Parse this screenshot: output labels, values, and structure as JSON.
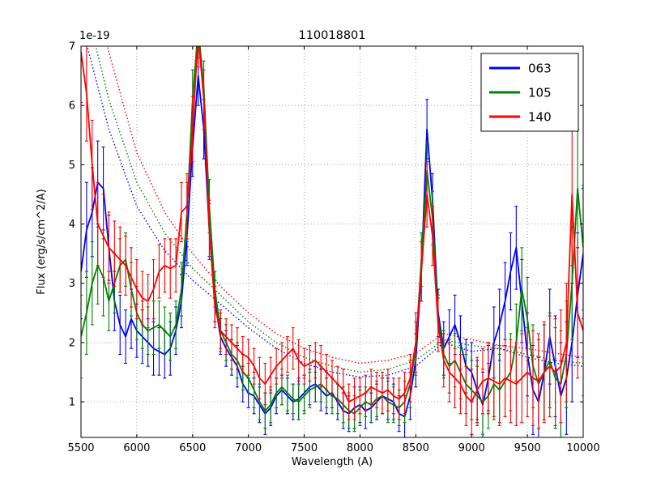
{
  "chart_data": {
    "type": "line",
    "title": "110018801",
    "xlabel": "Wavelength (A)",
    "ylabel": "Flux (erg/s/cm^2/A)",
    "y_offset_text": "1e-19",
    "xlim": [
      5500,
      10000
    ],
    "ylim": [
      0.4,
      7.0
    ],
    "xticks": [
      5500,
      6000,
      6500,
      7000,
      7500,
      8000,
      8500,
      9000,
      9500,
      10000
    ],
    "yticks": [
      1,
      2,
      3,
      4,
      5,
      6,
      7
    ],
    "grid": true,
    "grid_style": "dotted",
    "grid_color": "#999999",
    "axes_color": "#000000",
    "background": "#ffffff",
    "legend": {
      "position": "upper right",
      "entries": [
        {
          "label": "063",
          "color": "#0000ff"
        },
        {
          "label": "105",
          "color": "#008000"
        },
        {
          "label": "140",
          "color": "#ff0000"
        }
      ]
    },
    "x": {
      "start": 5500,
      "step": 50,
      "count": 91
    },
    "dotted_x": [
      5500,
      5750,
      6000,
      6250,
      6500,
      6750,
      7000,
      7250,
      7500,
      7750,
      8000,
      8250,
      8500,
      8750,
      9000,
      9250,
      9500,
      9750,
      10000
    ],
    "series": [
      {
        "name": "063-model",
        "color": "#0000ff",
        "style": "dotted",
        "use_dotted_x": true,
        "values": [
          7.4,
          5.6,
          4.3,
          3.55,
          3.05,
          2.65,
          2.25,
          1.9,
          1.65,
          1.5,
          1.42,
          1.45,
          1.6,
          2.0,
          1.85,
          1.9,
          1.75,
          1.65,
          1.6
        ]
      },
      {
        "name": "105-model",
        "color": "#008000",
        "style": "dotted",
        "use_dotted_x": true,
        "values": [
          8.0,
          6.1,
          4.7,
          3.85,
          3.25,
          2.8,
          2.35,
          2.0,
          1.75,
          1.6,
          1.5,
          1.55,
          1.7,
          2.05,
          1.95,
          1.9,
          1.8,
          1.7,
          1.65
        ]
      },
      {
        "name": "140-model",
        "color": "#ff0000",
        "style": "dotted",
        "use_dotted_x": true,
        "values": [
          9.0,
          6.9,
          5.2,
          4.2,
          3.5,
          2.95,
          2.5,
          2.15,
          1.9,
          1.75,
          1.65,
          1.7,
          1.82,
          2.15,
          2.05,
          1.95,
          1.9,
          1.82,
          1.75
        ]
      },
      {
        "name": "063",
        "color": "#0000ff",
        "style": "solid",
        "values": [
          3.2,
          3.9,
          4.2,
          4.7,
          4.6,
          3.6,
          2.7,
          2.3,
          2.1,
          2.4,
          2.2,
          2.1,
          2.0,
          1.9,
          1.85,
          1.8,
          1.9,
          2.2,
          2.7,
          3.8,
          5.3,
          6.5,
          5.6,
          3.9,
          2.7,
          2.1,
          1.9,
          1.75,
          1.6,
          1.3,
          1.15,
          1.1,
          0.95,
          0.8,
          0.9,
          1.1,
          1.2,
          1.1,
          1.0,
          1.05,
          1.15,
          1.25,
          1.3,
          1.2,
          1.1,
          1.15,
          1.0,
          0.85,
          0.8,
          0.9,
          0.95,
          0.85,
          0.9,
          1.0,
          1.1,
          1.05,
          1.0,
          0.8,
          0.75,
          1.1,
          1.7,
          3.2,
          5.6,
          4.4,
          2.5,
          1.9,
          2.1,
          2.3,
          2.0,
          1.6,
          1.5,
          1.2,
          0.95,
          1.4,
          2.0,
          2.3,
          2.7,
          3.2,
          3.6,
          2.7,
          1.8,
          1.2,
          1.0,
          1.5,
          2.1,
          1.6,
          1.1,
          1.4,
          2.0,
          2.8,
          3.5
        ],
        "errors": [
          0.8,
          0.8,
          0.75,
          0.7,
          0.7,
          0.55,
          0.5,
          0.5,
          0.45,
          0.5,
          0.45,
          0.45,
          0.4,
          0.45,
          0.4,
          0.4,
          0.45,
          0.4,
          0.45,
          0.5,
          0.5,
          0.5,
          0.5,
          0.45,
          0.35,
          0.3,
          0.3,
          0.3,
          0.35,
          0.3,
          0.25,
          0.3,
          0.3,
          0.35,
          0.3,
          0.3,
          0.25,
          0.3,
          0.3,
          0.35,
          0.3,
          0.3,
          0.3,
          0.35,
          0.3,
          0.25,
          0.3,
          0.3,
          0.3,
          0.35,
          0.3,
          0.3,
          0.25,
          0.3,
          0.3,
          0.35,
          0.3,
          0.3,
          0.35,
          0.4,
          0.45,
          0.5,
          0.5,
          0.45,
          0.4,
          0.45,
          0.45,
          0.5,
          0.45,
          0.45,
          0.5,
          0.5,
          0.55,
          0.55,
          0.6,
          0.6,
          0.65,
          0.65,
          0.7,
          0.7,
          0.7,
          0.75,
          0.75,
          0.8,
          0.8,
          0.85,
          0.9,
          0.95,
          1.0,
          1.05,
          1.1
        ]
      },
      {
        "name": "105",
        "color": "#008000",
        "style": "solid",
        "values": [
          2.1,
          2.5,
          3.0,
          3.3,
          3.1,
          2.7,
          3.0,
          3.3,
          3.4,
          2.9,
          2.5,
          2.3,
          2.2,
          2.25,
          2.3,
          2.2,
          2.1,
          2.3,
          2.9,
          4.2,
          6.1,
          7.3,
          6.3,
          4.3,
          2.9,
          2.2,
          2.0,
          1.8,
          1.7,
          1.5,
          1.4,
          1.2,
          1.0,
          0.85,
          0.95,
          1.15,
          1.25,
          1.15,
          1.05,
          1.0,
          1.1,
          1.2,
          1.25,
          1.3,
          1.2,
          1.1,
          1.05,
          0.95,
          0.85,
          0.8,
          0.9,
          1.0,
          0.95,
          1.05,
          1.1,
          1.0,
          0.95,
          0.9,
          1.0,
          1.3,
          1.9,
          3.4,
          4.9,
          4.1,
          2.4,
          1.8,
          1.6,
          1.7,
          1.5,
          1.3,
          1.2,
          1.1,
          1.0,
          1.1,
          1.3,
          1.2,
          1.35,
          1.5,
          2.0,
          2.9,
          2.4,
          1.6,
          1.3,
          1.5,
          1.7,
          1.4,
          1.3,
          1.8,
          3.0,
          4.6,
          3.6
        ],
        "errors": [
          0.7,
          0.7,
          0.7,
          0.65,
          0.65,
          0.5,
          0.5,
          0.45,
          0.45,
          0.45,
          0.45,
          0.4,
          0.4,
          0.45,
          0.4,
          0.4,
          0.4,
          0.4,
          0.45,
          0.5,
          0.5,
          0.5,
          0.45,
          0.45,
          0.3,
          0.3,
          0.3,
          0.25,
          0.3,
          0.3,
          0.25,
          0.3,
          0.3,
          0.3,
          0.3,
          0.25,
          0.3,
          0.3,
          0.25,
          0.3,
          0.3,
          0.3,
          0.25,
          0.3,
          0.3,
          0.3,
          0.25,
          0.3,
          0.3,
          0.3,
          0.3,
          0.25,
          0.3,
          0.3,
          0.3,
          0.35,
          0.3,
          0.3,
          0.35,
          0.4,
          0.45,
          0.45,
          0.5,
          0.45,
          0.4,
          0.4,
          0.45,
          0.45,
          0.45,
          0.5,
          0.5,
          0.5,
          0.55,
          0.55,
          0.6,
          0.6,
          0.6,
          0.65,
          0.65,
          0.7,
          0.7,
          0.7,
          0.75,
          0.8,
          0.8,
          0.85,
          0.9,
          0.9,
          0.95,
          1.0,
          1.05
        ]
      },
      {
        "name": "140",
        "color": "#ff0000",
        "style": "solid",
        "values": [
          6.9,
          6.2,
          5.0,
          4.0,
          3.8,
          3.6,
          3.5,
          3.4,
          3.3,
          3.1,
          2.9,
          2.75,
          2.7,
          2.9,
          3.2,
          3.3,
          3.25,
          3.3,
          4.2,
          4.3,
          5.6,
          7.2,
          6.1,
          3.9,
          2.6,
          2.2,
          2.1,
          2.0,
          1.9,
          1.8,
          1.75,
          1.6,
          1.4,
          1.3,
          1.45,
          1.6,
          1.7,
          1.8,
          1.9,
          1.7,
          1.6,
          1.65,
          1.7,
          1.6,
          1.5,
          1.4,
          1.3,
          1.2,
          1.0,
          1.05,
          1.1,
          1.15,
          1.25,
          1.2,
          1.15,
          1.2,
          1.1,
          1.05,
          1.15,
          1.4,
          2.0,
          3.2,
          4.5,
          3.8,
          2.3,
          1.7,
          1.5,
          1.4,
          1.3,
          1.1,
          1.0,
          1.2,
          1.35,
          1.4,
          1.35,
          1.3,
          1.4,
          1.35,
          1.3,
          1.4,
          1.5,
          1.4,
          1.35,
          1.5,
          1.6,
          1.5,
          1.6,
          2.0,
          4.5,
          2.5,
          2.2
        ],
        "errors": [
          0.85,
          0.8,
          0.75,
          0.7,
          0.7,
          0.6,
          0.55,
          0.55,
          0.5,
          0.5,
          0.5,
          0.45,
          0.45,
          0.5,
          0.45,
          0.45,
          0.5,
          0.45,
          0.5,
          0.55,
          0.55,
          0.55,
          0.5,
          0.5,
          0.35,
          0.35,
          0.3,
          0.3,
          0.35,
          0.3,
          0.3,
          0.3,
          0.35,
          0.35,
          0.3,
          0.3,
          0.3,
          0.3,
          0.35,
          0.35,
          0.3,
          0.3,
          0.3,
          0.35,
          0.3,
          0.3,
          0.3,
          0.35,
          0.3,
          0.35,
          0.3,
          0.3,
          0.3,
          0.3,
          0.35,
          0.35,
          0.3,
          0.35,
          0.35,
          0.4,
          0.5,
          0.5,
          0.55,
          0.5,
          0.45,
          0.45,
          0.5,
          0.5,
          0.5,
          0.5,
          0.55,
          0.55,
          0.55,
          0.6,
          0.6,
          0.65,
          0.65,
          0.7,
          0.7,
          0.75,
          0.75,
          0.8,
          0.8,
          0.85,
          0.85,
          0.9,
          0.95,
          1.0,
          1.2,
          1.1,
          1.1
        ]
      }
    ]
  }
}
